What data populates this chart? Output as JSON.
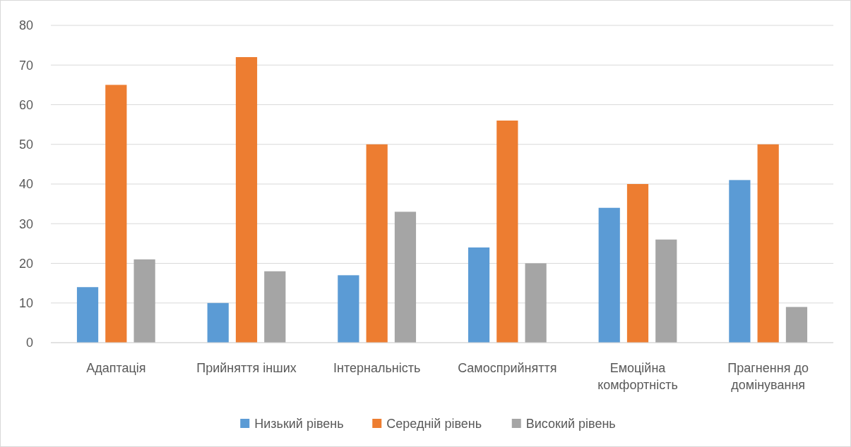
{
  "chart_data": {
    "type": "bar",
    "categories": [
      "Адаптація",
      "Прийняття інших",
      "Інтернальність",
      "Самосприйняття",
      "Емоційна комфортність",
      "Прагнення до домінування"
    ],
    "series": [
      {
        "name": "Низький рівень",
        "color": "#5b9bd5",
        "values": [
          14,
          10,
          17,
          24,
          34,
          41
        ]
      },
      {
        "name": "Середній рівень",
        "color": "#ed7d31",
        "values": [
          65,
          72,
          50,
          56,
          40,
          50
        ]
      },
      {
        "name": "Високий рівень",
        "color": "#a5a5a5",
        "values": [
          21,
          18,
          33,
          20,
          26,
          9
        ]
      }
    ],
    "ylim": [
      0,
      80
    ],
    "yticks": [
      0,
      10,
      20,
      30,
      40,
      50,
      60,
      70,
      80
    ],
    "grid": "y",
    "legend": "bottom"
  }
}
